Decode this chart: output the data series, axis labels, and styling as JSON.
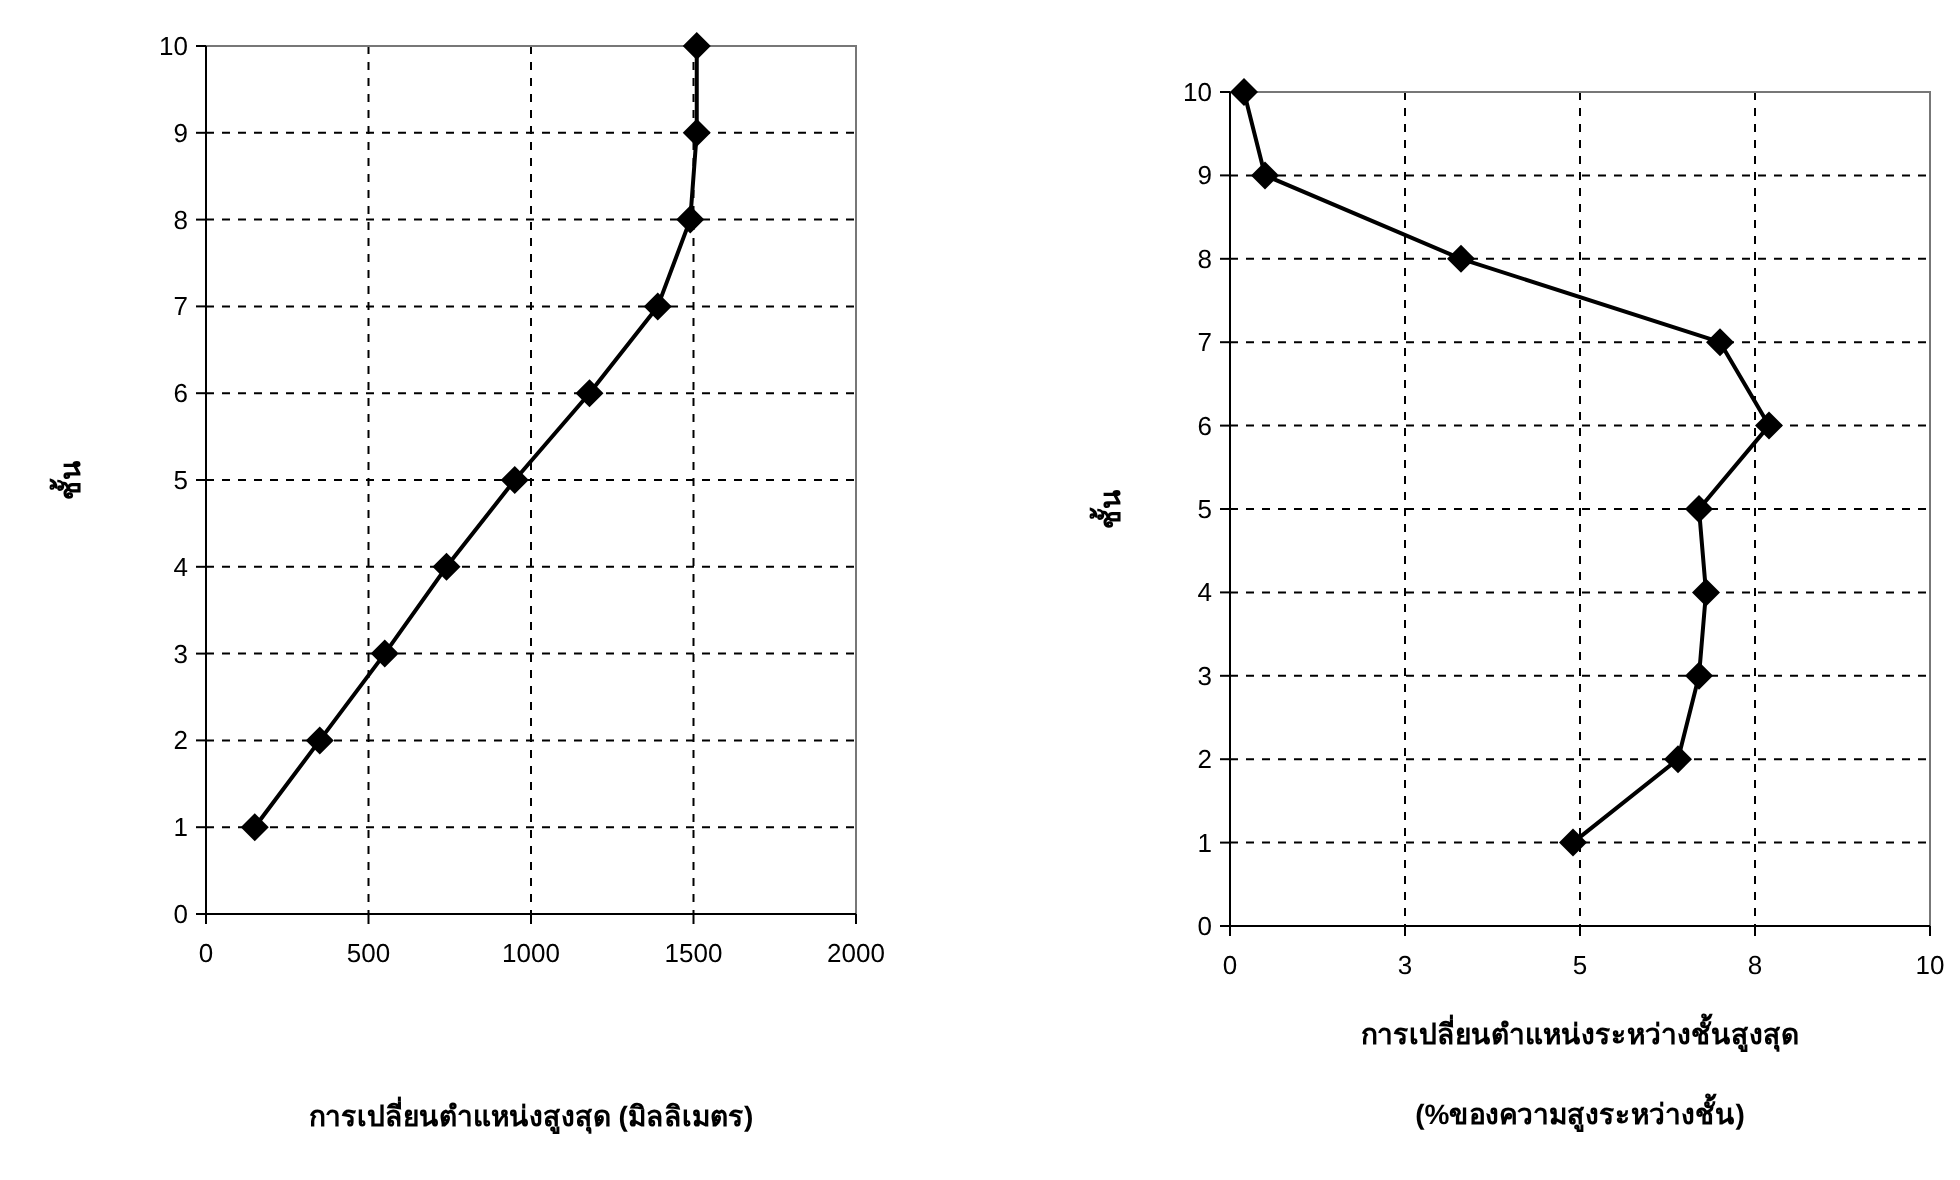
{
  "chart_data": [
    {
      "type": "line",
      "ylabel": "ชั้น",
      "xlabel": "การเปลี่ยนตำแหน่งสูงสุด (มิลลิเมตร)",
      "series": [
        {
          "color": "#000000",
          "x": [
            150,
            350,
            550,
            740,
            950,
            1180,
            1390,
            1490,
            1510,
            1510
          ],
          "values": [
            1,
            2,
            3,
            4,
            5,
            6,
            7,
            8,
            9,
            10
          ]
        }
      ],
      "xlim": [
        0,
        2000
      ],
      "xticks": [
        0,
        500,
        1000,
        1500,
        2000
      ],
      "ylim": [
        0,
        10
      ],
      "yticks": [
        0,
        1,
        2,
        3,
        4,
        5,
        6,
        7,
        8,
        9,
        10
      ],
      "grid": true,
      "marker": "diamond",
      "line_style": "solid"
    },
    {
      "type": "line",
      "ylabel": "ชั้น",
      "xlabel": "การเปลี่ยนตำแหน่งระหว่างชั้นสูงสุด\n(%ของความสูงระหว่างชั้น)",
      "series": [
        {
          "color": "#000000",
          "x": [
            4.9,
            6.4,
            6.7,
            6.8,
            6.7,
            7.7,
            7.0,
            3.3,
            0.5,
            0.2
          ],
          "values": [
            1,
            2,
            3,
            4,
            5,
            6,
            7,
            8,
            9,
            10
          ]
        }
      ],
      "xlim": [
        0,
        10
      ],
      "xticks": [
        0,
        {
          "value": 2.5,
          "label": "3"
        },
        5,
        {
          "value": 7.5,
          "label": "8"
        },
        10
      ],
      "ylim": [
        0,
        10
      ],
      "yticks": [
        0,
        1,
        2,
        3,
        4,
        5,
        6,
        7,
        8,
        9,
        10
      ],
      "grid": true,
      "marker": "diamond",
      "line_style": "solid"
    }
  ]
}
